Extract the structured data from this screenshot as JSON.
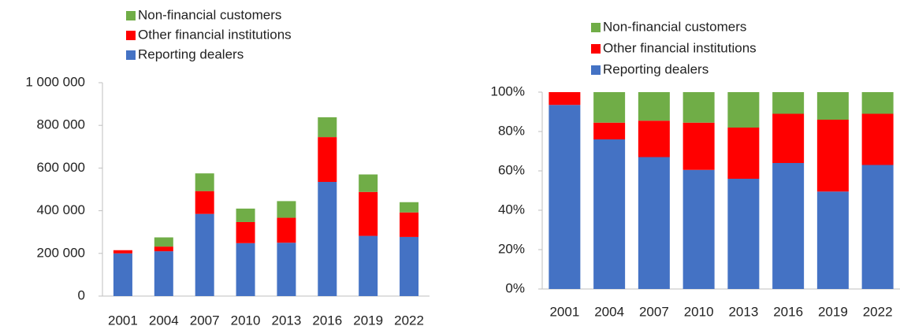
{
  "chart_data": [
    {
      "type": "bar",
      "stacked": true,
      "categories": [
        "2001",
        "2004",
        "2007",
        "2010",
        "2013",
        "2016",
        "2019",
        "2022"
      ],
      "series": [
        {
          "name": "Reporting dealers",
          "color": "#4472c4",
          "values": [
            200000,
            210000,
            385000,
            248000,
            250000,
            535000,
            282000,
            277000
          ]
        },
        {
          "name": "Other financial institutions",
          "color": "#ff0000",
          "values": [
            15000,
            22000,
            107000,
            99000,
            117000,
            210000,
            206000,
            115000
          ]
        },
        {
          "name": "Non-financial customers",
          "color": "#70ad47",
          "values": [
            0,
            43000,
            83000,
            63000,
            78000,
            93000,
            82000,
            48000
          ]
        }
      ],
      "ylim": [
        0,
        1000000
      ],
      "yticks": [
        0,
        {
          "value": 200000,
          "label": "200 000"
        },
        {
          "value": 400000,
          "label": "400 000"
        },
        {
          "value": 600000,
          "label": "600 000"
        },
        {
          "value": 800000,
          "label": "800 000"
        },
        {
          "value": 1000000,
          "label": "1 000 000"
        }
      ],
      "grid": false
    },
    {
      "type": "bar",
      "stacked": true,
      "categories": [
        "2001",
        "2004",
        "2007",
        "2010",
        "2013",
        "2016",
        "2019",
        "2022"
      ],
      "series": [
        {
          "name": "Reporting dealers",
          "color": "#4472c4",
          "values": [
            93.5,
            76,
            67,
            60.5,
            56,
            64,
            49.5,
            63
          ]
        },
        {
          "name": "Other financial institutions",
          "color": "#ff0000",
          "values": [
            6.5,
            8.5,
            18.5,
            24,
            26,
            25,
            36.5,
            26
          ]
        },
        {
          "name": "Non-financial customers",
          "color": "#70ad47",
          "values": [
            0,
            15.5,
            14.5,
            15.5,
            18,
            11,
            14,
            11
          ]
        }
      ],
      "ylim": [
        0,
        100
      ],
      "yticks": [
        {
          "value": 0,
          "label": "0%"
        },
        {
          "value": 20,
          "label": "20%"
        },
        {
          "value": 40,
          "label": "40%"
        },
        {
          "value": 60,
          "label": "60%"
        },
        {
          "value": 80,
          "label": "80%"
        },
        {
          "value": 100,
          "label": "100%"
        }
      ],
      "grid": false
    }
  ]
}
